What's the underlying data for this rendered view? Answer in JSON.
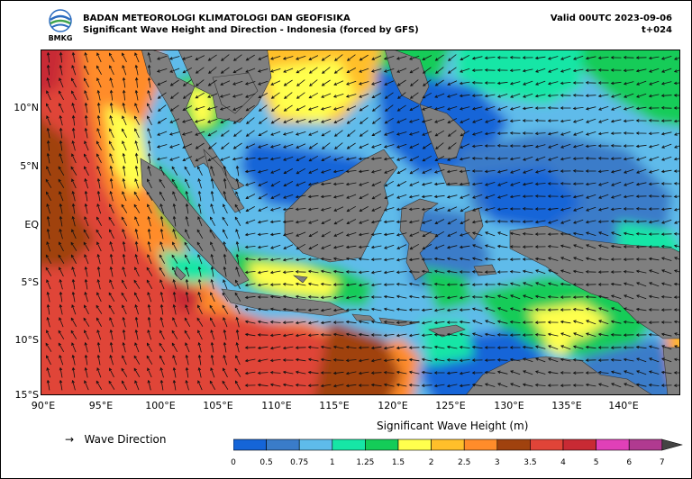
{
  "header": {
    "agency": "BADAN METEOROLOGI KLIMATOLOGI DAN GEOFISIKA",
    "subtitle": "Significant Wave Height and Direction - Indonesia (forced by GFS)",
    "valid": "Valid 00UTC 2023-09-06",
    "step": "t+024",
    "logo_text": "BMKG"
  },
  "map": {
    "lon_range": [
      90,
      145
    ],
    "lat_range": [
      -15,
      14.5
    ],
    "lat_ticks": [
      {
        "value": 10,
        "label": "10°N"
      },
      {
        "value": 5,
        "label": "5°N"
      },
      {
        "value": 0,
        "label": "EQ"
      },
      {
        "value": -5,
        "label": "5°S"
      },
      {
        "value": -10,
        "label": "10°S"
      },
      {
        "value": -15,
        "label": "15°S"
      }
    ],
    "lon_ticks": [
      {
        "value": 90,
        "label": "90°E"
      },
      {
        "value": 95,
        "label": "95°E"
      },
      {
        "value": 100,
        "label": "100°E"
      },
      {
        "value": 105,
        "label": "105°E"
      },
      {
        "value": 110,
        "label": "110°E"
      },
      {
        "value": 115,
        "label": "115°E"
      },
      {
        "value": 120,
        "label": "120°E"
      },
      {
        "value": 125,
        "label": "125°E"
      },
      {
        "value": 130,
        "label": "130°E"
      },
      {
        "value": 135,
        "label": "135°E"
      },
      {
        "value": 140,
        "label": "140°E"
      }
    ],
    "land_color": "#7f7f7f"
  },
  "legend": {
    "arrow_label": "Wave Direction",
    "colorbar_title": "Significant Wave Height (m)",
    "levels": [
      "0",
      "0.5",
      "0.75",
      "1",
      "1.25",
      "1.5",
      "2",
      "2.5",
      "3",
      "3.5",
      "4",
      "5",
      "6",
      "7"
    ],
    "colors": [
      "#1565d8",
      "#3a7cc9",
      "#5ebbea",
      "#16e6a6",
      "#14cc58",
      "#ffff4d",
      "#ffbf2a",
      "#ff8c2a",
      "#a0420e",
      "#e04438",
      "#c82a34",
      "#e040b8",
      "#b03a90"
    ]
  }
}
